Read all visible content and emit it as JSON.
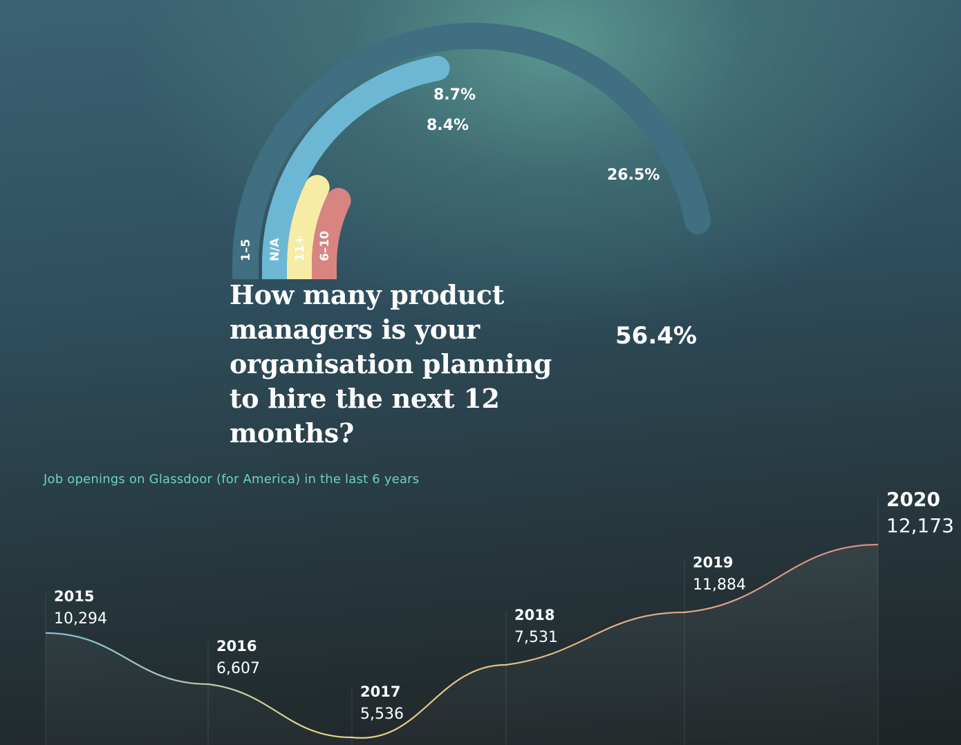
{
  "question": "How many product managers is your organisation planning to hire the next 12 months?",
  "line_chart_title": "Job openings on Glassdoor (for America) in the last 6 years",
  "colors": {
    "outer_track": "#3f6f80",
    "seg_1_5": "#3f6f80",
    "seg_na": "#6cb8d4",
    "seg_11plus": "#f7eca5",
    "seg_6_10": "#d88582",
    "line_start": "#7ec1d8",
    "line_mid": "#e6d68a",
    "line_end": "#e08a86",
    "title_teal": "#6fd1c3"
  },
  "chart_data": [
    {
      "type": "radial-bar",
      "title": "How many product managers is your organisation planning to hire the next 12 months?",
      "unit": "%",
      "series": [
        {
          "name": "1-5",
          "label": "1–5",
          "value": 56.4,
          "value_label": "56.4%"
        },
        {
          "name": "N/A",
          "label": "N/A",
          "value": 26.5,
          "value_label": "26.5%"
        },
        {
          "name": "11+",
          "label": "11+",
          "value": 8.7,
          "value_label": "8.7%"
        },
        {
          "name": "6-10",
          "label": "6–10",
          "value": 8.4,
          "value_label": "8.4%"
        }
      ]
    },
    {
      "type": "line",
      "title": "Job openings on Glassdoor (for America) in the last 6 years",
      "x": [
        "2015",
        "2016",
        "2017",
        "2018",
        "2019",
        "2020"
      ],
      "values": [
        10294,
        6607,
        5536,
        7531,
        11884,
        12173
      ],
      "value_labels": [
        "10,294",
        "6,607",
        "5,536",
        "7,531",
        "11,884",
        "12,173"
      ],
      "xlabel": "",
      "ylabel": ""
    }
  ]
}
